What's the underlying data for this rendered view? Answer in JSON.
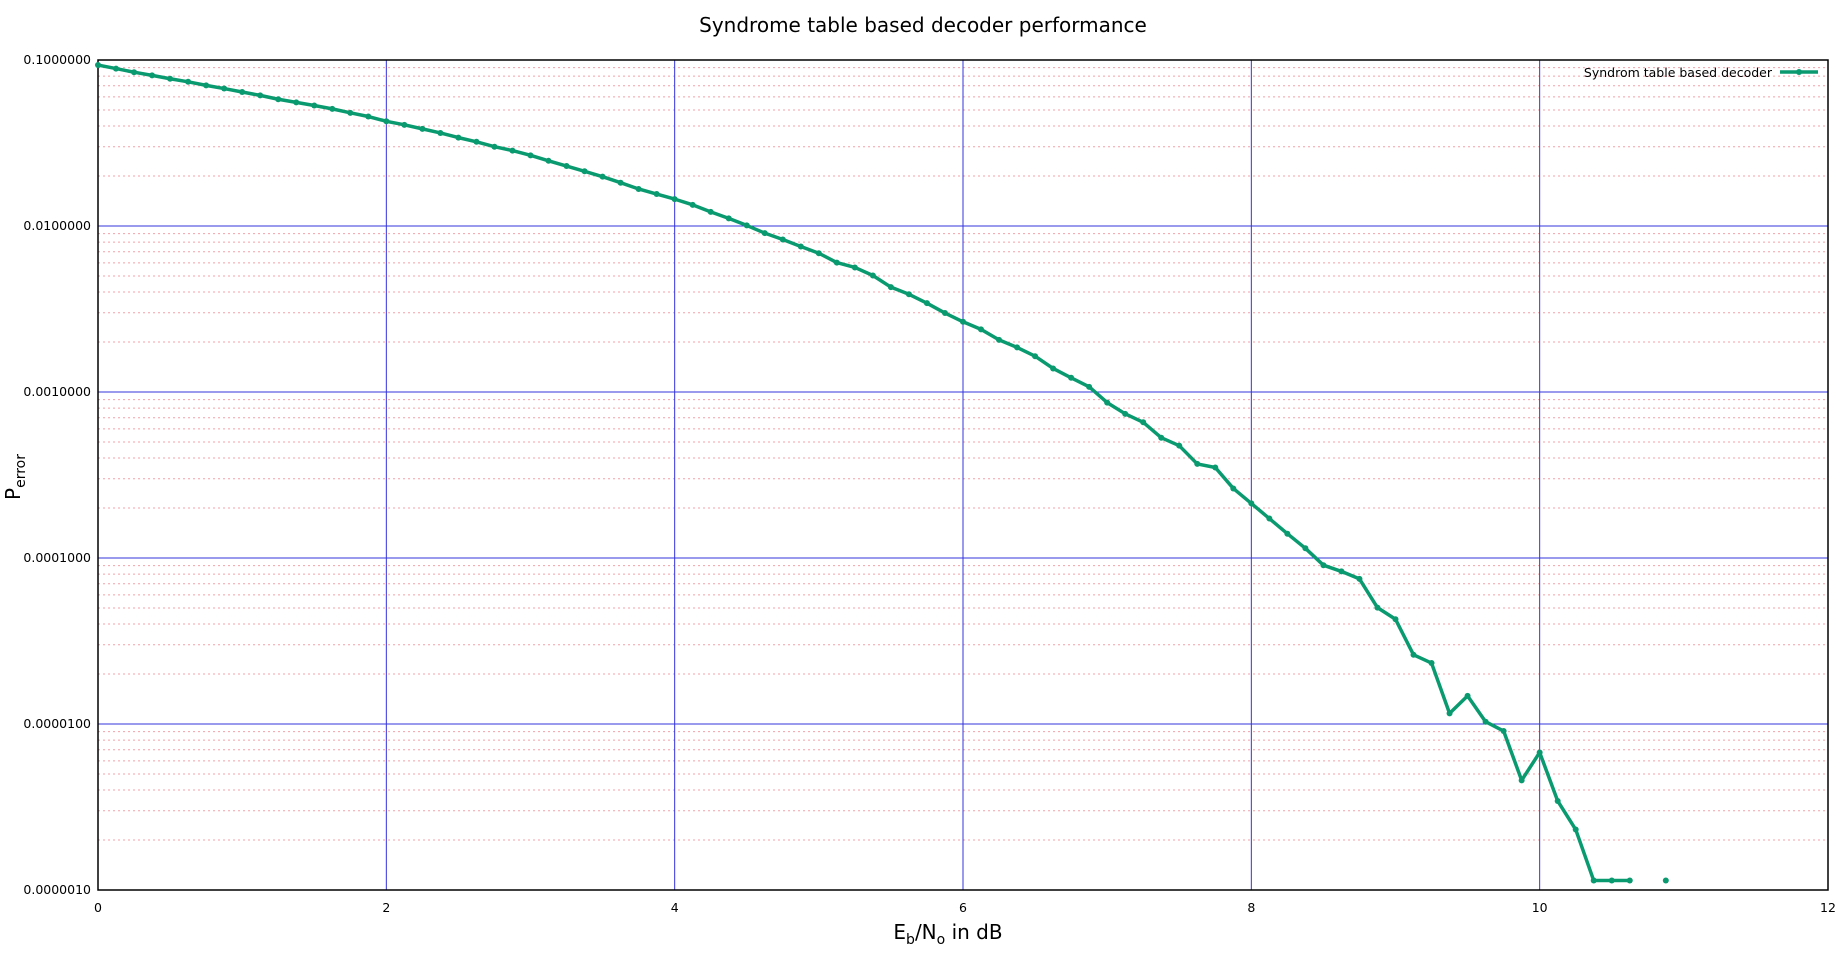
{
  "chart_data": {
    "type": "line",
    "title": "Syndrome table based decoder performance",
    "xlabel": {
      "base1": "E",
      "sub1": "b",
      "mid": "/N",
      "sub2": "o",
      "tail": " in dB"
    },
    "ylabel": {
      "base": "P",
      "sub": "error"
    },
    "xlim": [
      0,
      12
    ],
    "ylim": [
      1e-06,
      0.1
    ],
    "y_scale": "log",
    "x_ticks": [
      {
        "value": 0,
        "label": "0"
      },
      {
        "value": 2,
        "label": "2"
      },
      {
        "value": 4,
        "label": "4"
      },
      {
        "value": 6,
        "label": "6"
      },
      {
        "value": 8,
        "label": "8"
      },
      {
        "value": 10,
        "label": "10"
      },
      {
        "value": 12,
        "label": "12"
      }
    ],
    "y_ticks": [
      {
        "value": 0.1,
        "label": "0.1000000"
      },
      {
        "value": 0.01,
        "label": "0.0100000"
      },
      {
        "value": 0.001,
        "label": "0.0010000"
      },
      {
        "value": 0.0001,
        "label": "0.0001000"
      },
      {
        "value": 1e-05,
        "label": "0.0000100"
      },
      {
        "value": 1e-06,
        "label": "0.0000010"
      }
    ],
    "grid": {
      "major": true,
      "minor": true,
      "major_color": "#3333dd",
      "minor_color": "#f4a0a8"
    },
    "legend_position": "top-right",
    "series": [
      {
        "name": "Syndrom table based decoder",
        "color": "#0a9a70",
        "x": [
          0.0,
          0.125,
          0.25,
          0.375,
          0.5,
          0.625,
          0.75,
          0.875,
          1.0,
          1.125,
          1.25,
          1.375,
          1.5,
          1.625,
          1.75,
          1.875,
          2.0,
          2.125,
          2.25,
          2.375,
          2.5,
          2.625,
          2.75,
          2.875,
          3.0,
          3.125,
          3.25,
          3.375,
          3.5,
          3.625,
          3.75,
          3.875,
          4.0,
          4.125,
          4.25,
          4.375,
          4.5,
          4.625,
          4.75,
          4.875,
          5.0,
          5.125,
          5.25,
          5.375,
          5.5,
          5.625,
          5.75,
          5.875,
          6.0,
          6.125,
          6.25,
          6.375,
          6.5,
          6.625,
          6.75,
          6.875,
          7.0,
          7.125,
          7.25,
          7.375,
          7.5,
          7.625,
          7.75,
          7.875,
          8.0,
          8.125,
          8.25,
          8.375,
          8.5,
          8.625,
          8.75,
          8.875,
          9.0,
          9.125,
          9.25,
          9.375,
          9.5,
          9.625,
          9.75,
          9.875,
          10.0,
          10.125,
          10.25,
          10.375,
          10.5,
          10.625,
          10.875
        ],
        "values": [
          0.09326,
          0.08878,
          0.08443,
          0.08079,
          0.07711,
          0.07392,
          0.07035,
          0.06731,
          0.06414,
          0.06121,
          0.05801,
          0.05554,
          0.0532,
          0.05076,
          0.04806,
          0.04566,
          0.04274,
          0.04068,
          0.03847,
          0.03634,
          0.03408,
          0.03215,
          0.03004,
          0.02846,
          0.02665,
          0.0247,
          0.02298,
          0.02136,
          0.01982,
          0.01823,
          0.01671,
          0.01558,
          0.01452,
          0.01341,
          0.01216,
          0.01112,
          0.01008,
          0.009054,
          0.008289,
          0.007526,
          0.006852,
          0.006019,
          0.005628,
          0.005034,
          0.004283,
          0.003879,
          0.003429,
          0.00299,
          0.002648,
          0.002384,
          0.00206,
          0.001856,
          0.001643,
          0.001386,
          0.001218,
          0.001074,
          0.0008635,
          0.0007388,
          0.0006569,
          0.0005305,
          0.0004749,
          0.0003687,
          0.0003509,
          0.0002624,
          0.0002132,
          0.0001729,
          0.0001401,
          0.0001144,
          9.05e-05,
          8.302e-05,
          7.481e-05,
          5.022e-05,
          4.275e-05,
          2.611e-05,
          2.329e-05,
          1.159e-05,
          1.477e-05,
          1.032e-05,
          9.072e-06,
          4.578e-06,
          6.738e-06,
          3.438e-06,
          2.313e-06,
          1.14e-06,
          1.14e-06,
          1.14e-06,
          1.14e-06
        ],
        "segment_breaks": [
          86
        ]
      }
    ]
  }
}
